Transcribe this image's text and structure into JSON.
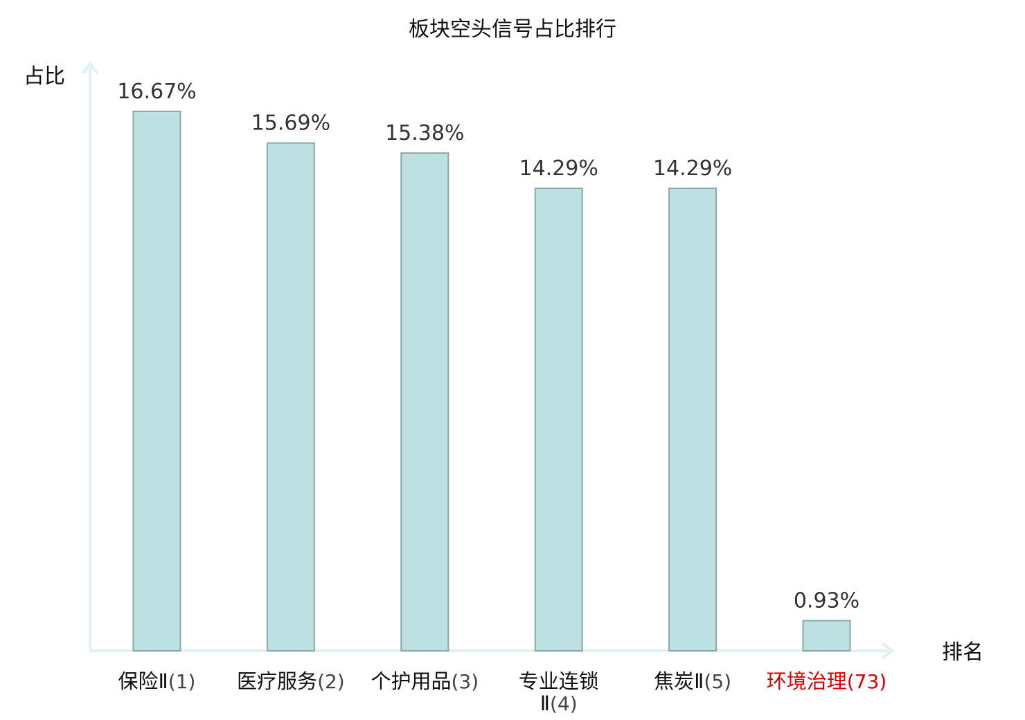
{
  "chart_data": {
    "type": "bar",
    "title": "板块空头信号占比排行",
    "xlabel": "排名",
    "ylabel": "占比",
    "ylim": [
      0,
      17.5
    ],
    "grid": false,
    "categories": [
      {
        "name": "保险Ⅱ",
        "rank": "(1)",
        "label": "16.67%"
      },
      {
        "name": "医疗服务",
        "rank": "(2)",
        "label": "15.69%"
      },
      {
        "name": "个护用品",
        "rank": "(3)",
        "label": "15.38%"
      },
      {
        "name": "专业连锁",
        "name_line2": "Ⅱ",
        "rank": "(4)",
        "label": "14.29%"
      },
      {
        "name": "焦炭Ⅱ",
        "rank": "(5)",
        "label": "14.29%"
      },
      {
        "name": "环境治理",
        "rank": "(73)",
        "label": "0.93%",
        "highlight": true
      }
    ],
    "values": [
      16.67,
      15.69,
      15.38,
      14.29,
      14.29,
      0.93
    ],
    "colors": {
      "bar_fill": "#bde1e3",
      "bar_stroke": "#8aa6a8",
      "axis": "#e0f2ef",
      "highlight": "#dd0000",
      "rank_text": "#444444",
      "category_text": "#111111"
    }
  }
}
